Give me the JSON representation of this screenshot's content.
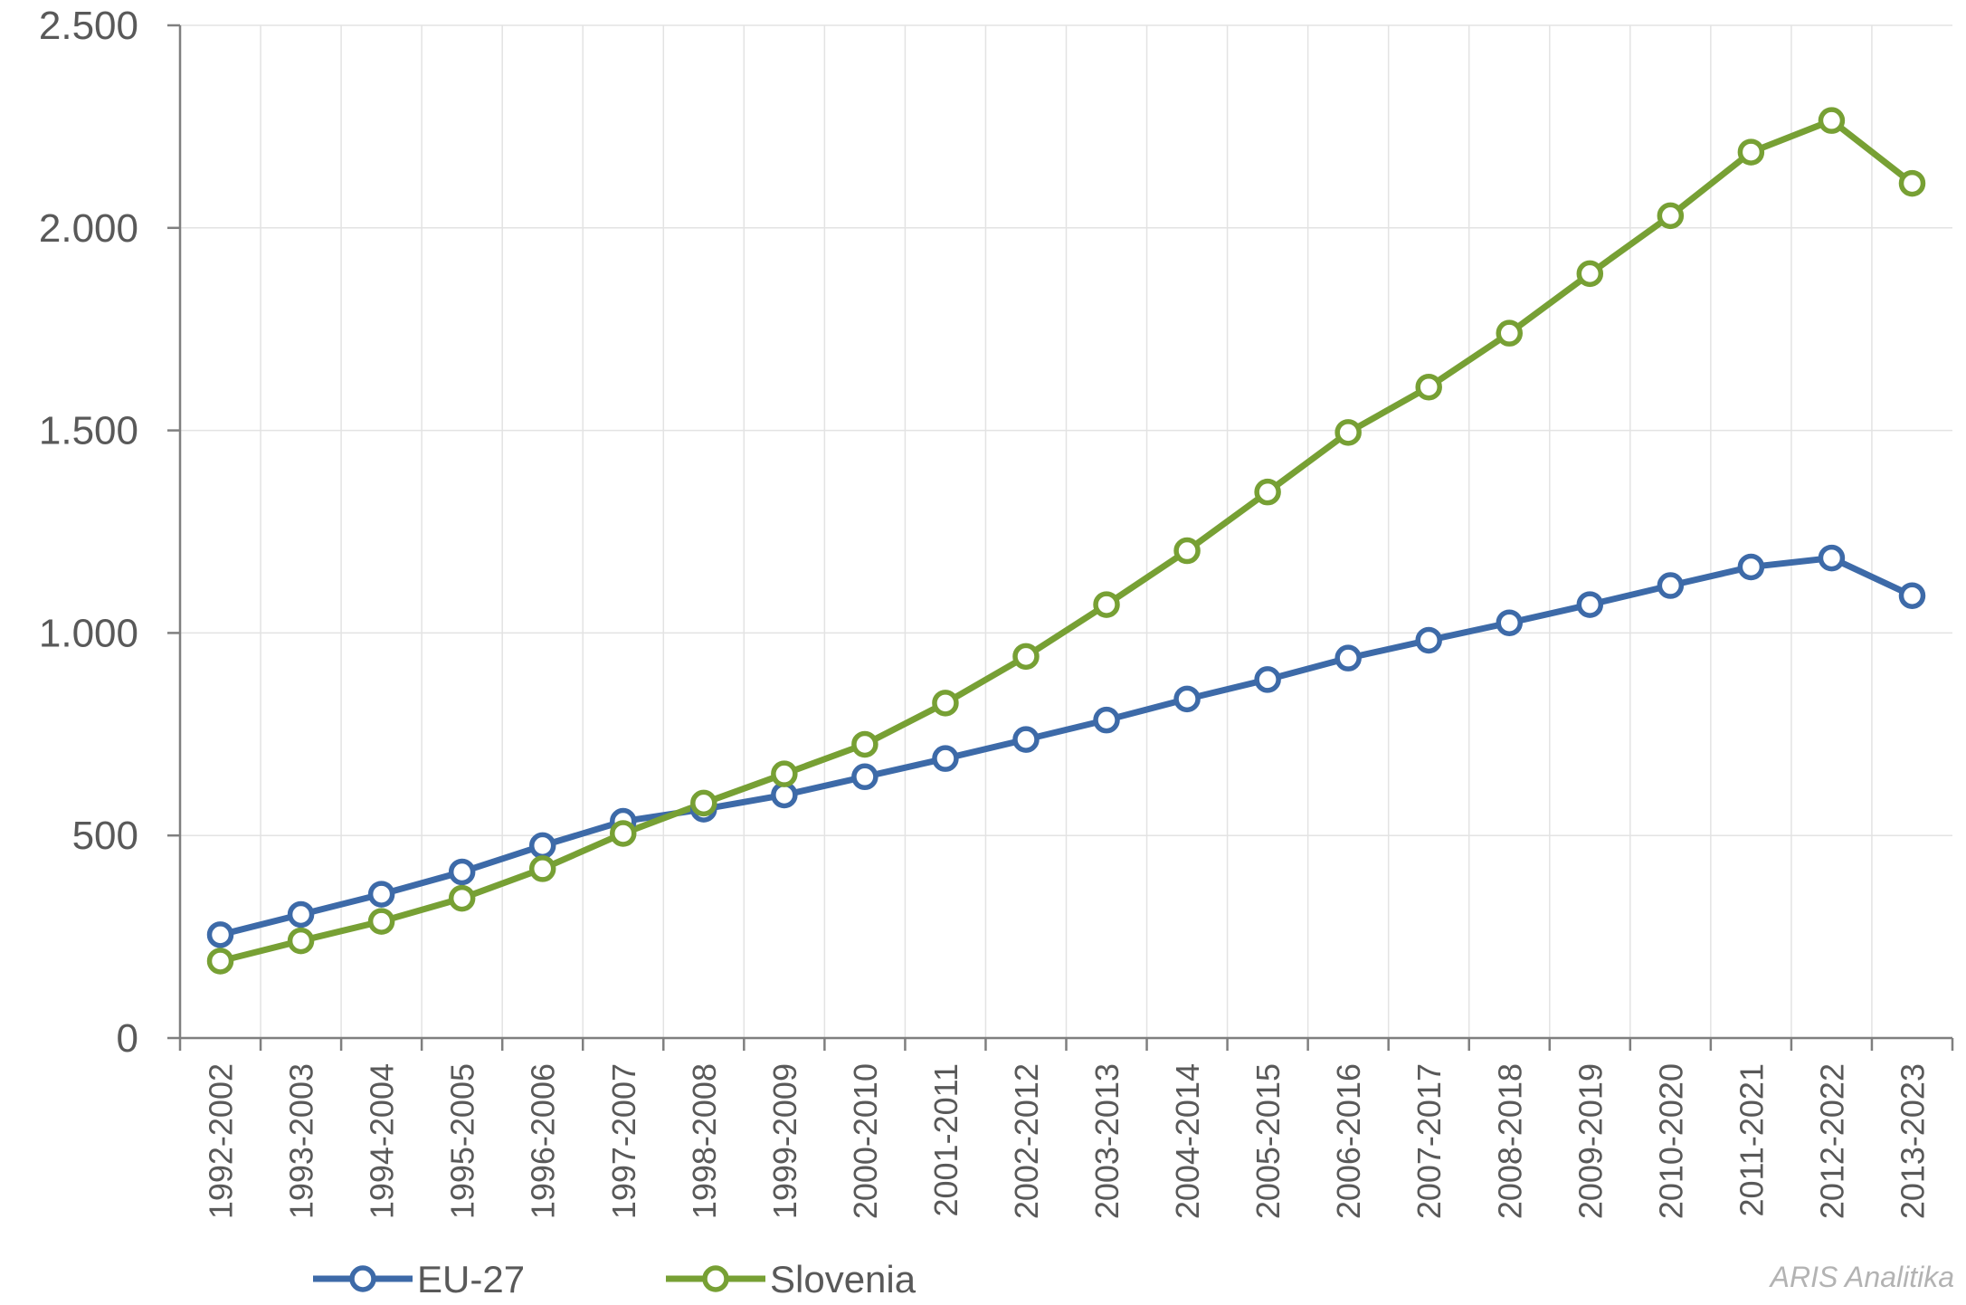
{
  "chart_data": {
    "type": "line",
    "title": "",
    "xlabel": "",
    "ylabel": "",
    "ylim": [
      0,
      2500
    ],
    "yticks": [
      0,
      500,
      1000,
      1500,
      2000,
      2500
    ],
    "ytick_labels": [
      "0",
      "500",
      "1.000",
      "1.500",
      "2.000",
      "2.500"
    ],
    "grid": true,
    "legend_position": "bottom-left",
    "categories": [
      "1992-2002",
      "1993-2003",
      "1994-2004",
      "1995-2005",
      "1996-2006",
      "1997-2007",
      "1998-2008",
      "1999-2009",
      "2000-2010",
      "2001-2011",
      "2002-2012",
      "2003-2013",
      "2004-2014",
      "2005-2015",
      "2006-2016",
      "2007-2017",
      "2008-2018",
      "2009-2019",
      "2010-2020",
      "2011-2021",
      "2012-2022",
      "2013-2023"
    ],
    "series": [
      {
        "name": "EU-27",
        "color": "#3d6aa8",
        "values": [
          255,
          305,
          355,
          410,
          475,
          535,
          565,
          600,
          645,
          690,
          737,
          785,
          837,
          885,
          938,
          982,
          1025,
          1070,
          1117,
          1163,
          1185,
          1092
        ]
      },
      {
        "name": "Slovenia",
        "color": "#77a034",
        "values": [
          190,
          240,
          288,
          345,
          418,
          505,
          580,
          652,
          725,
          827,
          942,
          1070,
          1203,
          1348,
          1495,
          1607,
          1740,
          1887,
          2030,
          2187,
          2265,
          2110
        ]
      }
    ]
  },
  "watermark": "ARIS Analitika"
}
